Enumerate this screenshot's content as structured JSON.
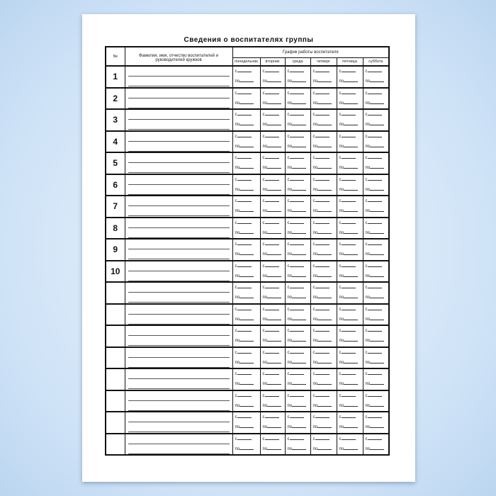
{
  "title": "Сведения о воспитателях группы",
  "headers": {
    "number": "№",
    "name": "Фамилия, имя, отчество воспитателей и руководителей кружков",
    "schedule": "График работы воспитателя",
    "days": [
      "понедельник",
      "вторник",
      "среда",
      "четверг",
      "пятница",
      "суббота"
    ]
  },
  "from_label": "с",
  "to_label": "по",
  "rows": [
    "1",
    "2",
    "3",
    "4",
    "5",
    "6",
    "7",
    "8",
    "9",
    "10",
    "",
    "",
    "",
    "",
    "",
    "",
    "",
    ""
  ],
  "colors": {
    "background": "#cfe3f7",
    "page": "#ffffff",
    "lines": "#111111"
  }
}
